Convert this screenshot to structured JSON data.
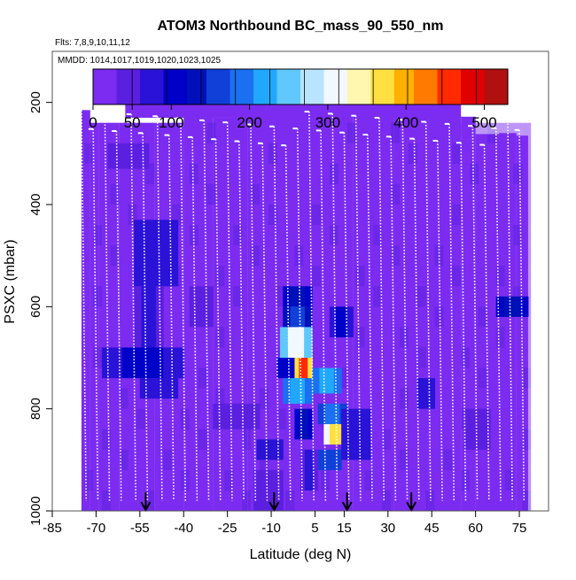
{
  "chart_data": {
    "type": "heatmap",
    "title": "ATOM3 Northbound BC_mass_90_550_nm",
    "subtitle_flights": "Flts: 7,8,9,10,11,12",
    "subtitle_dates": "MMDD: 1014,1017,1019,1020,1023,1025",
    "xlabel": "Latitude (deg N)",
    "ylabel": "PSXC (mbar)",
    "xlim": [
      -85,
      85
    ],
    "ylim": [
      1000,
      100
    ],
    "x_ticks": [
      "-85",
      "-70",
      "-55",
      "-40",
      "-25",
      "-10",
      "5",
      "15",
      "30",
      "45",
      "60",
      "75"
    ],
    "x_tick_values": [
      -85,
      -70,
      -55,
      -40,
      -25,
      -10,
      5,
      15,
      30,
      45,
      60,
      75
    ],
    "y_ticks": [
      "200",
      "400",
      "600",
      "800",
      "1000"
    ],
    "y_tick_values": [
      200,
      400,
      600,
      800,
      1000
    ],
    "colorbar": {
      "min": 0,
      "max": 530,
      "ticks": [
        "0",
        "50",
        "100",
        "200",
        "300",
        "400",
        "500"
      ],
      "tick_values": [
        0,
        50,
        100,
        200,
        300,
        400,
        500
      ],
      "colors": [
        "#7b2cf0",
        "#5b1fe0",
        "#2a12d6",
        "#0000c8",
        "#0010b8",
        "#1040d8",
        "#1a70f0",
        "#20a8ff",
        "#60c8ff",
        "#b8e4ff",
        "#f2f8ff",
        "#fff6b0",
        "#ffe040",
        "#ffb000",
        "#ff7a00",
        "#ff2a00",
        "#e00000",
        "#b01010"
      ]
    },
    "arrows_latitude": [
      -53,
      -9,
      16,
      38
    ],
    "background_value": 15,
    "data_patches": [
      {
        "lat": [
          -66,
          -52
        ],
        "p": [
          280,
          330
        ],
        "value": 45
      },
      {
        "lat": [
          -57,
          -42
        ],
        "p": [
          430,
          560
        ],
        "value": 80
      },
      {
        "lat": [
          -57,
          -47
        ],
        "p": [
          560,
          680
        ],
        "value": 75
      },
      {
        "lat": [
          -68,
          -40
        ],
        "p": [
          680,
          740
        ],
        "value": 100
      },
      {
        "lat": [
          -55,
          -42
        ],
        "p": [
          740,
          780
        ],
        "value": 80
      },
      {
        "lat": [
          -38,
          -30
        ],
        "p": [
          560,
          640
        ],
        "value": 40
      },
      {
        "lat": [
          -30,
          -14
        ],
        "p": [
          790,
          840
        ],
        "value": 60
      },
      {
        "lat": [
          -15,
          -6
        ],
        "p": [
          860,
          900
        ],
        "value": 80
      },
      {
        "lat": [
          -16,
          -6
        ],
        "p": [
          920,
          1000
        ],
        "value": 55
      },
      {
        "lat": [
          -6,
          4
        ],
        "p": [
          560,
          600
        ],
        "value": 130
      },
      {
        "lat": [
          -6,
          4
        ],
        "p": [
          600,
          640
        ],
        "value": 160
      },
      {
        "lat": [
          -7,
          4
        ],
        "p": [
          640,
          700
        ],
        "value": 330
      },
      {
        "lat": [
          -8,
          3
        ],
        "p": [
          700,
          740
        ],
        "value": 120
      },
      {
        "lat": [
          -6,
          4
        ],
        "p": [
          740,
          790
        ],
        "value": 230
      },
      {
        "lat": [
          -2,
          4
        ],
        "p": [
          700,
          740
        ],
        "value": 480
      },
      {
        "lat": [
          4,
          14
        ],
        "p": [
          720,
          770
        ],
        "value": 250
      },
      {
        "lat": [
          6,
          16
        ],
        "p": [
          790,
          830
        ],
        "value": 200
      },
      {
        "lat": [
          8,
          16
        ],
        "p": [
          830,
          870
        ],
        "value": 390
      },
      {
        "lat": [
          6,
          14
        ],
        "p": [
          880,
          920
        ],
        "value": 190
      },
      {
        "lat": [
          10,
          18
        ],
        "p": [
          600,
          660
        ],
        "value": 110
      },
      {
        "lat": [
          -2,
          4
        ],
        "p": [
          800,
          860
        ],
        "value": 130
      },
      {
        "lat": [
          14,
          24
        ],
        "p": [
          800,
          900
        ],
        "value": 90
      },
      {
        "lat": [
          0,
          6
        ],
        "p": [
          880,
          960
        ],
        "value": 70
      },
      {
        "lat": [
          40,
          46
        ],
        "p": [
          740,
          800
        ],
        "value": 95
      },
      {
        "lat": [
          67,
          78
        ],
        "p": [
          580,
          620
        ],
        "value": 150
      },
      {
        "lat": [
          56,
          65
        ],
        "p": [
          800,
          880
        ],
        "value": 55
      }
    ]
  }
}
